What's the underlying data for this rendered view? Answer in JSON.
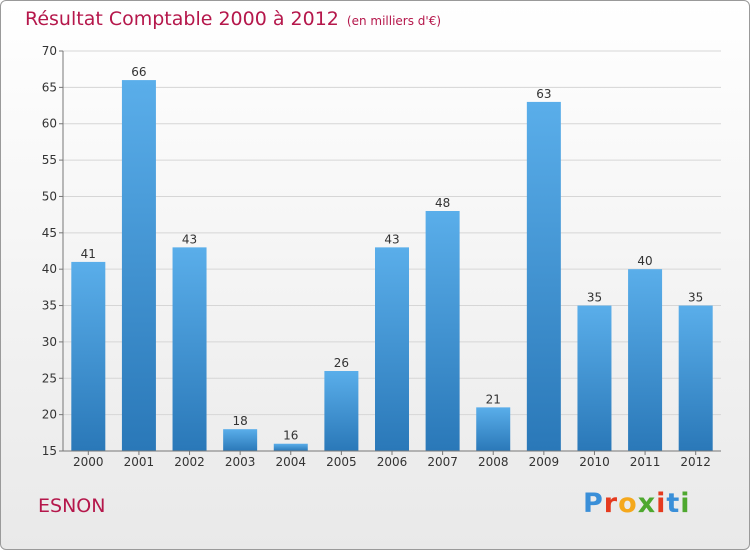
{
  "header": {
    "title": "Résultat Comptable 2000 à 2012",
    "subtitle": "(en milliers d'€)"
  },
  "footer": {
    "location": "ESNON",
    "brand": "Proxiti"
  },
  "brand_colors": {
    "letters": [
      "#3a8fd8",
      "#e53a1e",
      "#f5a81c",
      "#4ea82f",
      "#e53a1e",
      "#3a8fd8",
      "#4ea82f"
    ]
  },
  "colors": {
    "bar_top": "#5aaeea",
    "bar_bottom": "#2a78b8",
    "accent": "#b5174b"
  },
  "chart_data": {
    "type": "bar",
    "title": "Résultat Comptable 2000 à 2012",
    "subtitle": "(en milliers d'€)",
    "xlabel": "",
    "ylabel": "",
    "categories": [
      "2000",
      "2001",
      "2002",
      "2003",
      "2004",
      "2005",
      "2006",
      "2007",
      "2008",
      "2009",
      "2010",
      "2011",
      "2012"
    ],
    "values": [
      41,
      66,
      43,
      18,
      16,
      26,
      43,
      48,
      21,
      63,
      35,
      40,
      35
    ],
    "ylim": [
      15,
      70
    ],
    "yticks": [
      15,
      20,
      25,
      30,
      35,
      40,
      45,
      50,
      55,
      60,
      65,
      70
    ],
    "grid": true
  }
}
